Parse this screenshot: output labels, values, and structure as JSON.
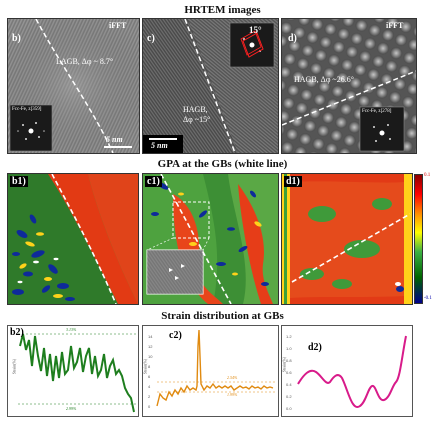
{
  "titles": {
    "hrtem": "HRTEM images",
    "gpa": "GPA at the GBs (white line)",
    "strain": "Strain distribution at GBs"
  },
  "panel_b": {
    "label": "b)",
    "tag": "iFFT",
    "gb_label": "LAGB, Δφ ~ 8.7°",
    "inset_label": "Fcc-Fe, z[359]",
    "scale": "5 nm"
  },
  "panel_c": {
    "label": "c)",
    "angle": "15°",
    "gb_label_1": "HAGB,",
    "gb_label_2": "Δφ ~15°",
    "scale": "5 nm"
  },
  "panel_d": {
    "label": "d)",
    "tag": "iFFT",
    "gb_label": "HAGB, Δφ ~26.6°",
    "inset_label": "Fcc-Fe, z[278]"
  },
  "gpa_panels": {
    "b1": "b1)",
    "c1": "c1)",
    "d1": "d1)",
    "cbar_max": "0.1",
    "cbar_min": "-0.1",
    "colormap": [
      "#8b0000",
      "#ff0000",
      "#ff8c00",
      "#ffff00",
      "#2e8b57",
      "#006400",
      "#00008b"
    ]
  },
  "plots": {
    "b2": {
      "label": "b2)",
      "ylabel": "Strain(%)",
      "ann_top": "3.13%",
      "ann_bottom": "2.99%",
      "color": "#1e7e1e"
    },
    "c2": {
      "label": "c2)",
      "ylabel": "Strain(%)",
      "ann_top": "2.54%",
      "ann_bottom": "1.99%",
      "color": "#e08a10",
      "yticks": [
        "14",
        "12",
        "10",
        "8",
        "6",
        "4",
        "2",
        "0"
      ]
    },
    "d2": {
      "label": "d2)",
      "ylabel": "Strain(%)",
      "color": "#d81b8a",
      "yticks": [
        "1.2",
        "1.0",
        "0.8",
        "0.6",
        "0.4",
        "0.2",
        "0.0"
      ]
    }
  }
}
